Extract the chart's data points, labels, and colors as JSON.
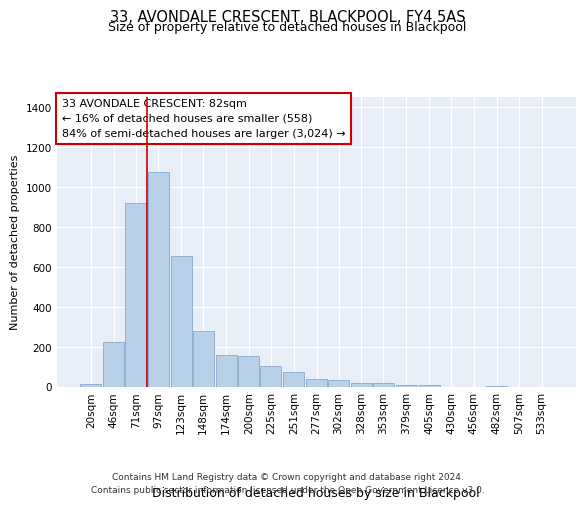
{
  "title": "33, AVONDALE CRESCENT, BLACKPOOL, FY4 5AS",
  "subtitle": "Size of property relative to detached houses in Blackpool",
  "xlabel": "Distribution of detached houses by size in Blackpool",
  "ylabel": "Number of detached properties",
  "categories": [
    "20sqm",
    "46sqm",
    "71sqm",
    "97sqm",
    "123sqm",
    "148sqm",
    "174sqm",
    "200sqm",
    "225sqm",
    "251sqm",
    "277sqm",
    "302sqm",
    "328sqm",
    "353sqm",
    "379sqm",
    "405sqm",
    "430sqm",
    "456sqm",
    "482sqm",
    "507sqm",
    "533sqm"
  ],
  "bin_centers": [
    20,
    46,
    71,
    97,
    123,
    148,
    174,
    200,
    225,
    251,
    277,
    302,
    328,
    353,
    379,
    405,
    430,
    456,
    482,
    507,
    533
  ],
  "values": [
    15,
    225,
    920,
    1075,
    655,
    280,
    160,
    158,
    108,
    75,
    42,
    35,
    20,
    22,
    13,
    10,
    0,
    0,
    8,
    0,
    0
  ],
  "bar_color": "#b8d0e8",
  "bar_edge_color": "#88aacc",
  "bg_color": "#e8eef8",
  "grid_color": "#ffffff",
  "annotation_box_color": "#cc0000",
  "annotation_line1": "33 AVONDALE CRESCENT: 82sqm",
  "annotation_line2": "← 16% of detached houses are smaller (558)",
  "annotation_line3": "84% of semi-detached houses are larger (3,024) →",
  "property_line_x": 84,
  "ylim": [
    0,
    1450
  ],
  "yticks": [
    0,
    200,
    400,
    600,
    800,
    1000,
    1200,
    1400
  ],
  "footer_line1": "Contains HM Land Registry data © Crown copyright and database right 2024.",
  "footer_line2": "Contains public sector information licensed under the Open Government Licence v3.0.",
  "title_fontsize": 10.5,
  "subtitle_fontsize": 9,
  "xlabel_fontsize": 9,
  "ylabel_fontsize": 8,
  "tick_fontsize": 7.5,
  "annotation_fontsize": 8,
  "footer_fontsize": 6.5
}
